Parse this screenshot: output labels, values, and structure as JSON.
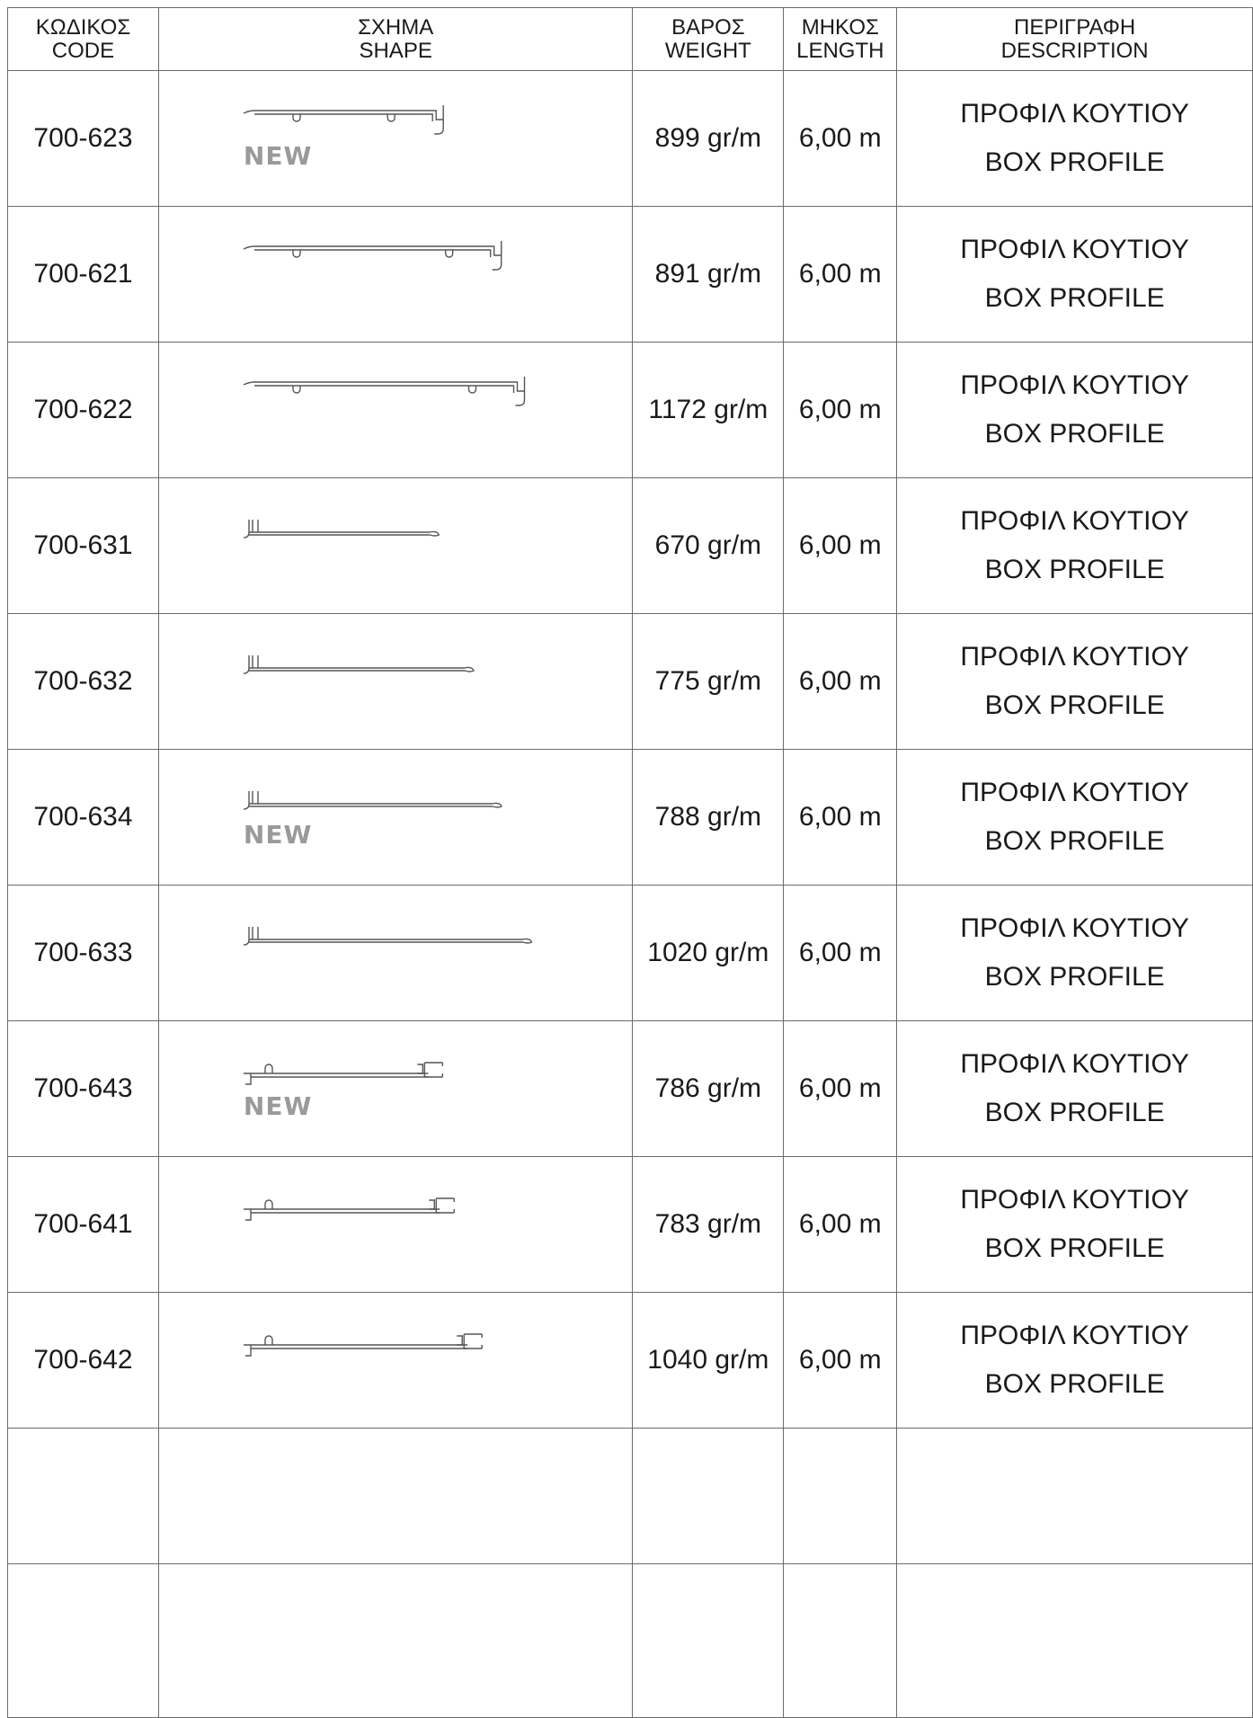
{
  "header": {
    "code": [
      "ΚΩΔΙΚΟΣ",
      "CODE"
    ],
    "shape": [
      "ΣΧΗΜΑ",
      "SHAPE"
    ],
    "weight": [
      "ΒΑΡΟΣ",
      "WEIGHT"
    ],
    "length": [
      "ΜΗΚΟΣ",
      "LENGTH"
    ],
    "description": [
      "ΠΕΡΙΓΡΑΦΗ",
      "DESCRIPTION"
    ]
  },
  "new_label": "NEW",
  "rows": [
    {
      "code": "700-623",
      "weight": "899 gr/m",
      "length": "6,00 m",
      "desc": [
        "ΠΡΟΦΙΛ ΚΟΥΤΙΟΥ",
        "BOX PROFILE"
      ],
      "is_new": true,
      "profile_type": "box-hooked",
      "profile_length_mm": 900
    },
    {
      "code": "700-621",
      "weight": "891 gr/m",
      "length": "6,00 m",
      "desc": [
        "ΠΡΟΦΙΛ ΚΟΥΤΙΟΥ",
        "BOX PROFILE"
      ],
      "is_new": false,
      "profile_type": "box-hooked",
      "profile_length_mm": 1150
    },
    {
      "code": "700-622",
      "weight": "1172 gr/m",
      "length": "6,00 m",
      "desc": [
        "ΠΡΟΦΙΛ ΚΟΥΤΙΟΥ",
        "BOX PROFILE"
      ],
      "is_new": false,
      "profile_type": "box-hooked",
      "profile_length_mm": 1250
    },
    {
      "code": "700-631",
      "weight": "670 gr/m",
      "length": "6,00 m",
      "desc": [
        "ΠΡΟΦΙΛ ΚΟΥΤΙΟΥ",
        "BOX PROFILE"
      ],
      "is_new": false,
      "profile_type": "box-flat",
      "profile_length_mm": 850
    },
    {
      "code": "700-632",
      "weight": "775 gr/m",
      "length": "6,00 m",
      "desc": [
        "ΠΡΟΦΙΛ ΚΟΥΤΙΟΥ",
        "BOX PROFILE"
      ],
      "is_new": false,
      "profile_type": "box-flat",
      "profile_length_mm": 1000
    },
    {
      "code": "700-634",
      "weight": "788 gr/m",
      "length": "6,00 m",
      "desc": [
        "ΠΡΟΦΙΛ ΚΟΥΤΙΟΥ",
        "BOX PROFILE"
      ],
      "is_new": true,
      "profile_type": "box-flat",
      "profile_length_mm": 1120
    },
    {
      "code": "700-633",
      "weight": "1020 gr/m",
      "length": "6,00 m",
      "desc": [
        "ΠΡΟΦΙΛ ΚΟΥΤΙΟΥ",
        "BOX PROFILE"
      ],
      "is_new": false,
      "profile_type": "box-flat",
      "profile_length_mm": 1250
    },
    {
      "code": "700-643",
      "weight": "786 gr/m",
      "length": "6,00 m",
      "desc": [
        "ΠΡΟΦΙΛ ΚΟΥΤΙΟΥ",
        "BOX PROFILE"
      ],
      "is_new": true,
      "profile_type": "box-clip",
      "profile_length_mm": 920
    },
    {
      "code": "700-641",
      "weight": "783 gr/m",
      "length": "6,00 m",
      "desc": [
        "ΠΡΟΦΙΛ ΚΟΥΤΙΟΥ",
        "BOX PROFILE"
      ],
      "is_new": false,
      "profile_type": "box-clip",
      "profile_length_mm": 970
    },
    {
      "code": "700-642",
      "weight": "1040 gr/m",
      "length": "6,00 m",
      "desc": [
        "ΠΡΟΦΙΛ ΚΟΥΤΙΟΥ",
        "BOX PROFILE"
      ],
      "is_new": false,
      "profile_type": "box-clip",
      "profile_length_mm": 1090
    }
  ],
  "empty_rows": 2
}
